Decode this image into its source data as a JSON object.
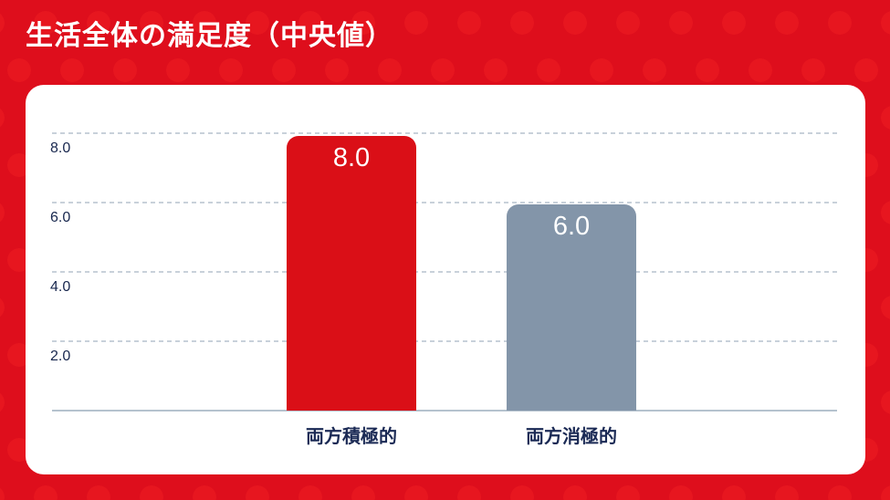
{
  "header": {
    "title": "生活全体の満足度（中央値）"
  },
  "colors": {
    "background_red": "#DE0E1C",
    "background_dot_red": "#E7161F",
    "card_background": "#FFFFFF",
    "axis_label_navy": "#18274E",
    "category_label_navy": "#1B2A55",
    "gridline_gray": "#C8D1DA",
    "baseline_gray": "#B5C2CE",
    "bar_red": "#DA0F17",
    "bar_blue_gray": "#8395A9",
    "value_label_white": "#FFFFFF",
    "title_white": "#FFFFFF"
  },
  "chart_data": {
    "type": "bar",
    "title": "生活全体の満足度（中央値）",
    "categories": [
      "両方積極的",
      "両方消極的"
    ],
    "values": [
      8.0,
      6.0
    ],
    "value_labels": [
      "8.0",
      "6.0"
    ],
    "value_label_position": "inside-top",
    "bar_colors": [
      "#DA0F17",
      "#8395A9"
    ],
    "yticks": [
      2.0,
      4.0,
      6.0,
      8.0
    ],
    "ytick_labels": [
      "2.0",
      "4.0",
      "6.0",
      "8.0"
    ],
    "ylim": [
      0,
      8.5
    ],
    "xlabel": "",
    "ylabel": "",
    "grid": "horizontal-dashed",
    "legend": "none"
  }
}
